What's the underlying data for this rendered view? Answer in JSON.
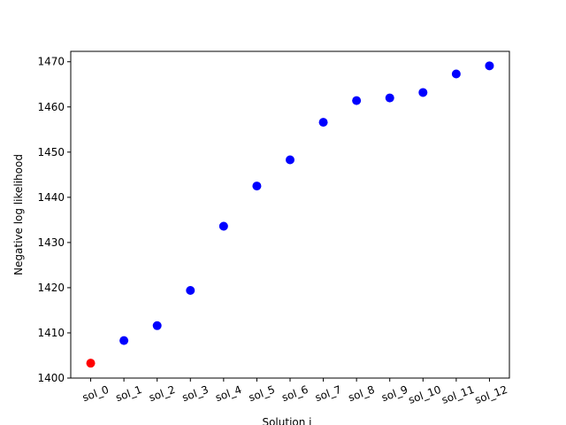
{
  "chart_data": {
    "type": "scatter",
    "title": "",
    "xlabel": "Solution i",
    "ylabel": "Negative log likelihood",
    "categories": [
      "sol_0",
      "sol_1",
      "sol_2",
      "sol_3",
      "sol_4",
      "sol_5",
      "sol_6",
      "sol_7",
      "sol_8",
      "sol_9",
      "sol_10",
      "sol_11",
      "sol_12"
    ],
    "values": [
      1403.3,
      1408.3,
      1411.6,
      1419.4,
      1433.6,
      1442.5,
      1448.3,
      1456.6,
      1461.4,
      1462.0,
      1463.2,
      1467.3,
      1469.1
    ],
    "point_colors": [
      "#ff0000",
      "#0000ff",
      "#0000ff",
      "#0000ff",
      "#0000ff",
      "#0000ff",
      "#0000ff",
      "#0000ff",
      "#0000ff",
      "#0000ff",
      "#0000ff",
      "#0000ff",
      "#0000ff"
    ],
    "ylim": [
      1400,
      1472.3
    ],
    "yticks": [
      1400,
      1410,
      1420,
      1430,
      1440,
      1450,
      1460,
      1470
    ],
    "grid": false,
    "xtick_rotation": 20
  }
}
